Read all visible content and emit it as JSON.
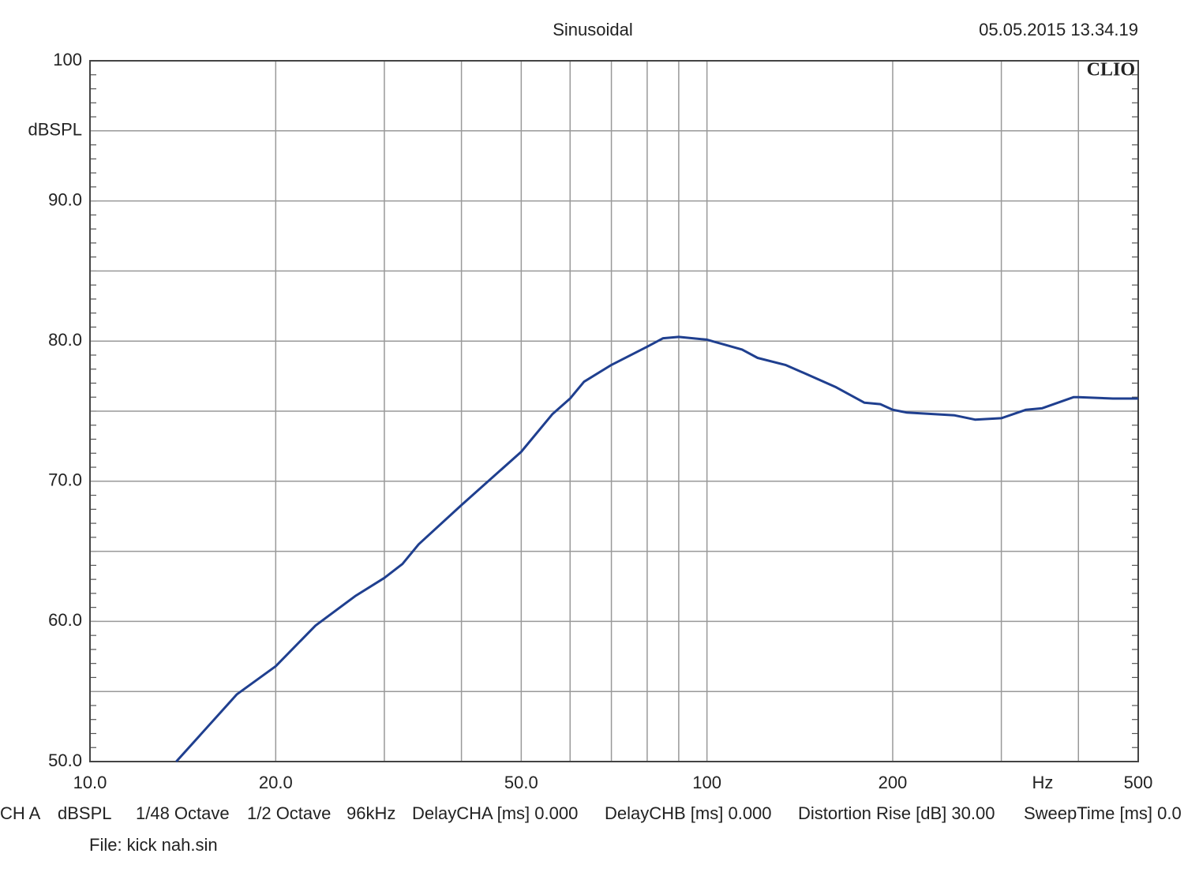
{
  "chart_data": {
    "type": "line",
    "title": "Sinusoidal",
    "date": "05.05.2015 13.34.19",
    "logo": "CLIO",
    "x_label": "Hz",
    "y_label": "dBSPL",
    "x_log": true,
    "grid": true,
    "x": [
      13.8,
      17.3,
      20,
      23.2,
      26.9,
      30,
      32.1,
      34.1,
      40,
      50,
      56.2,
      60,
      63.2,
      70,
      80,
      84.9,
      90,
      100,
      114,
      120.8,
      134,
      144,
      162,
      180,
      191,
      200,
      211,
      252,
      272,
      300,
      329,
      349,
      393,
      400,
      455,
      500
    ],
    "series": [
      {
        "name": "CH A",
        "color": "#1f3f8f",
        "values": [
          50,
          54.8,
          56.8,
          59.7,
          61.8,
          63.1,
          64.1,
          65.5,
          68.3,
          72.1,
          74.8,
          75.9,
          77.1,
          78.3,
          79.6,
          80.2,
          80.3,
          80.1,
          79.4,
          78.8,
          78.3,
          77.7,
          76.7,
          75.6,
          75.5,
          75.1,
          74.9,
          74.7,
          74.4,
          74.5,
          75.1,
          75.2,
          76,
          76,
          75.9,
          75.9
        ]
      }
    ],
    "xlim": [
      10,
      500
    ],
    "xticks": [
      {
        "value": 10,
        "label": "10.0"
      },
      {
        "value": 20,
        "label": "20.0"
      },
      {
        "value": 50,
        "label": "50.0"
      },
      100,
      200,
      500
    ],
    "xgrid": [
      30,
      40,
      60,
      70,
      80,
      90,
      300,
      400
    ],
    "ylim": [
      50,
      100
    ],
    "yticks": [
      {
        "value": 50,
        "label": "50.0"
      },
      {
        "value": 60,
        "label": "60.0"
      },
      {
        "value": 70,
        "label": "70.0"
      },
      {
        "value": 80,
        "label": "80.0"
      },
      {
        "value": 90,
        "label": "90.0"
      },
      100
    ],
    "ygrid": [
      55,
      65,
      75,
      85,
      95
    ],
    "y_minor_step": 1,
    "footer": [
      "CH A",
      "dBSPL",
      "1/48 Octave",
      "1/2 Octave",
      "96kHz",
      "DelayCHA [ms] 0.000",
      "DelayCHB [ms] 0.000",
      "Distortion Rise [dB] 30.00",
      "SweepTime [ms] 0.0"
    ],
    "file": "File: kick nah.sin"
  }
}
